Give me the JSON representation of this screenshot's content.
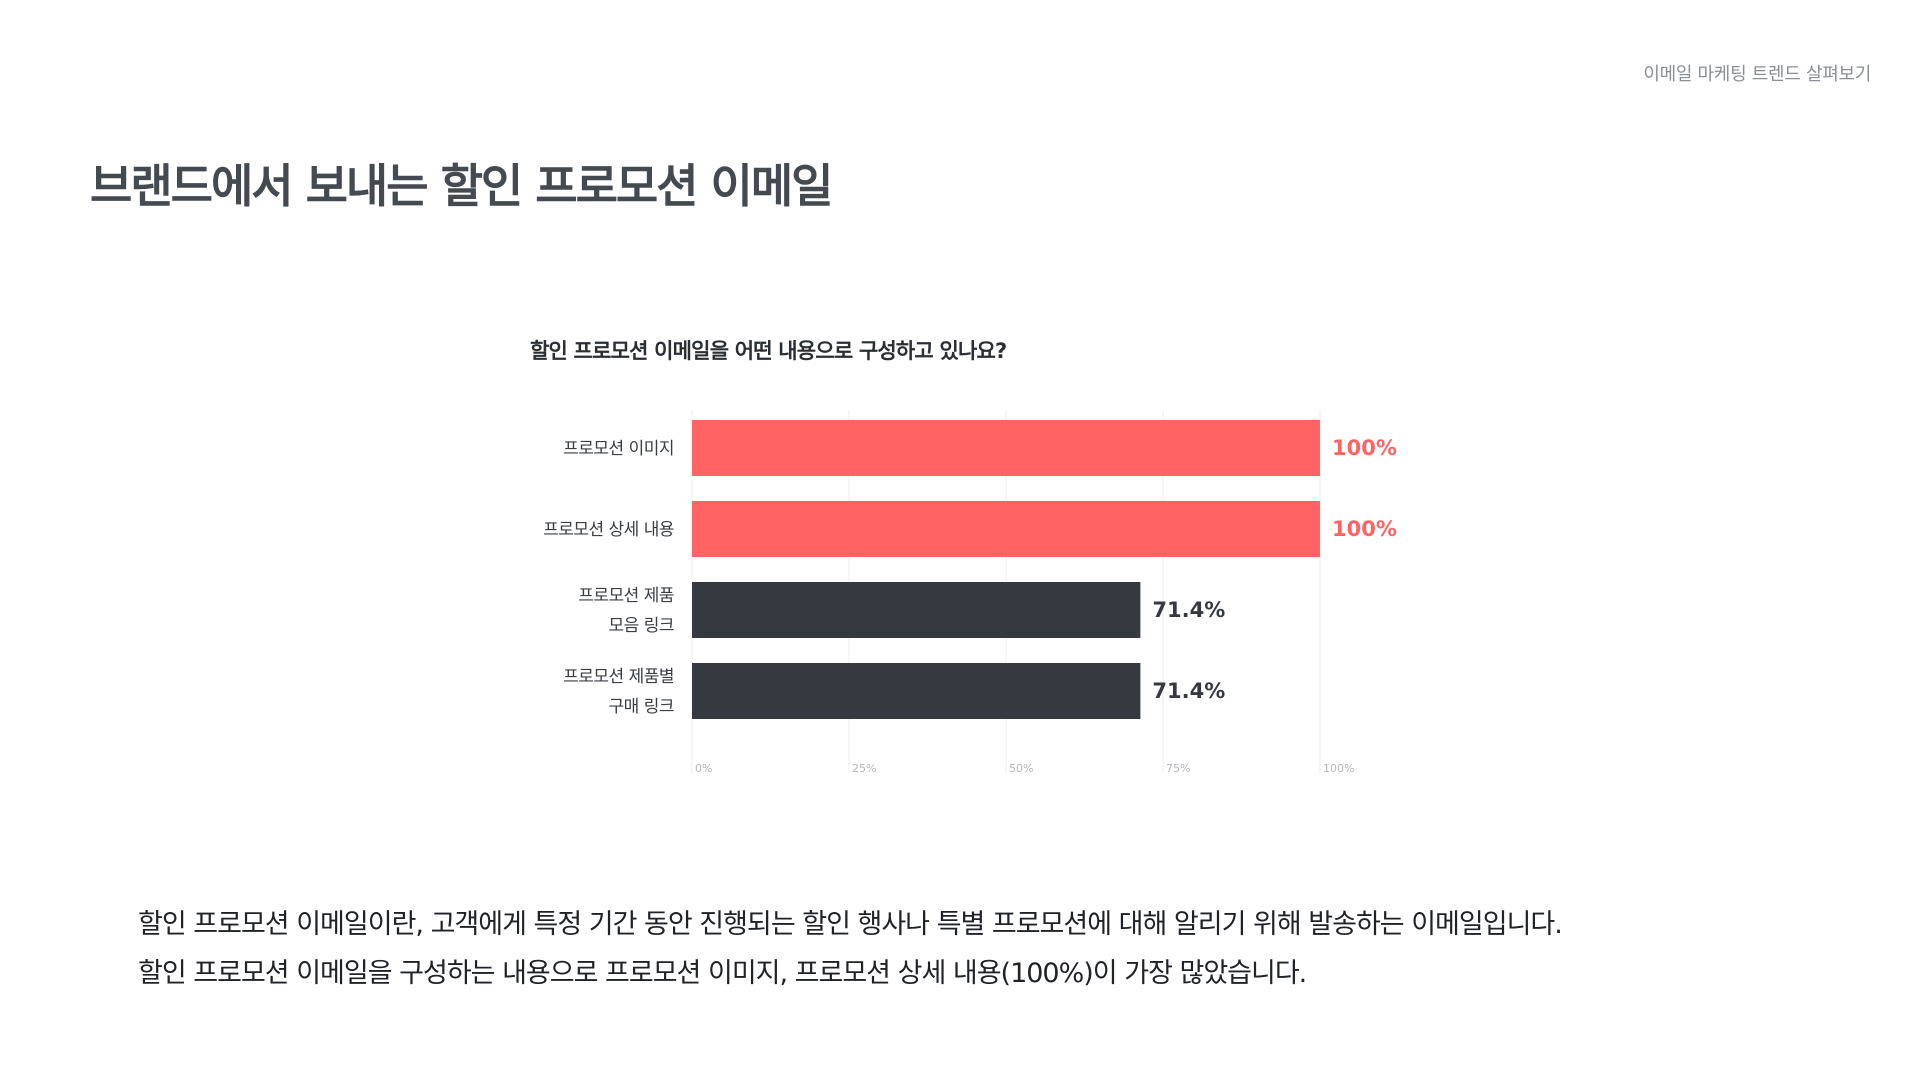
{
  "header": {
    "tag": "이메일 마케팅 트렌드 살펴보기"
  },
  "page": {
    "title": "브랜드에서 보내는 할인 프로모션 이메일"
  },
  "chart_data": {
    "type": "bar",
    "orientation": "horizontal",
    "title": "할인 프로모션 이메일을 어떤 내용으로 구성하고 있나요?",
    "categories": [
      [
        "프로모션 이미지"
      ],
      [
        "프로모션 상세 내용"
      ],
      [
        "프로모션 제품",
        "모음 링크"
      ],
      [
        "프로모션 제품별",
        "구매 링크"
      ]
    ],
    "values": [
      100,
      100,
      71.4,
      71.4
    ],
    "value_labels": [
      "100%",
      "100%",
      "71.4%",
      "71.4%"
    ],
    "bar_colors": [
      "#ff6464",
      "#ff6464",
      "#363a40",
      "#363a40"
    ],
    "label_colors": [
      "#ff6464",
      "#ff6464",
      "#363a40",
      "#363a40"
    ],
    "xlim": [
      0,
      100
    ],
    "x_ticks": [
      0,
      25,
      50,
      75,
      100
    ],
    "x_tick_labels": [
      "0%",
      "25%",
      "50%",
      "75%",
      "100%"
    ],
    "grid": true,
    "xlabel": "",
    "ylabel": ""
  },
  "description": {
    "line1": "할인 프로모션 이메일이란, 고객에게 특정 기간 동안 진행되는 할인 행사나 특별 프로모션에 대해 알리기 위해 발송하는 이메일입니다.",
    "line2": "할인 프로모션 이메일을 구성하는 내용으로 프로모션 이미지, 프로모션 상세 내용(100%)이 가장 많았습니다."
  }
}
